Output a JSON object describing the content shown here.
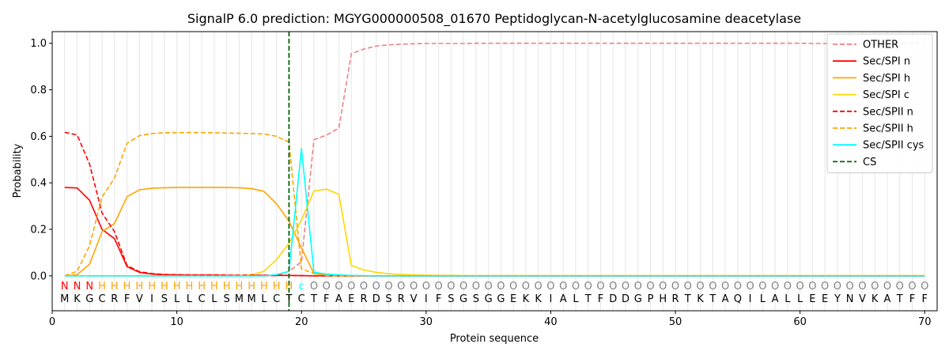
{
  "chart_data": {
    "type": "line",
    "title": "SignalP 6.0 prediction: MGYG000000508_01670 Peptidoglycan-N-acetylglucosamine deacetylase",
    "xlabel": "Protein sequence",
    "ylabel": "Probability",
    "xlim": [
      0,
      71
    ],
    "ylim": [
      -0.15,
      1.05
    ],
    "xticks": [
      0,
      10,
      20,
      30,
      40,
      50,
      60,
      70
    ],
    "yticks": [
      0.0,
      0.2,
      0.4,
      0.6,
      0.8,
      1.0
    ],
    "grid": "vertical lines at every residue position",
    "legend_position": "top-right",
    "sequence": [
      "M",
      "K",
      "G",
      "C",
      "R",
      "F",
      "V",
      "I",
      "S",
      "L",
      "L",
      "C",
      "L",
      "S",
      "M",
      "M",
      "L",
      "C",
      "T",
      "C",
      "T",
      "F",
      "A",
      "E",
      "R",
      "D",
      "S",
      "R",
      "V",
      "I",
      "F",
      "S",
      "G",
      "S",
      "G",
      "G",
      "E",
      "K",
      "K",
      "I",
      "A",
      "L",
      "T",
      "F",
      "D",
      "D",
      "G",
      "P",
      "H",
      "R",
      "T",
      "K",
      "T",
      "A",
      "Q",
      "I",
      "L",
      "A",
      "L",
      "L",
      "E",
      "E",
      "Y",
      "N",
      "V",
      "K",
      "A",
      "T",
      "F",
      "F"
    ],
    "region_labels": [
      "N",
      "N",
      "N",
      "H",
      "H",
      "H",
      "H",
      "H",
      "H",
      "H",
      "H",
      "H",
      "H",
      "H",
      "H",
      "H",
      "H",
      "H",
      "H",
      "c",
      "O",
      "O",
      "O",
      "O",
      "O",
      "O",
      "O",
      "O",
      "O",
      "O",
      "O",
      "O",
      "O",
      "O",
      "O",
      "O",
      "O",
      "O",
      "O",
      "O",
      "O",
      "O",
      "O",
      "O",
      "O",
      "O",
      "O",
      "O",
      "O",
      "O",
      "O",
      "O",
      "O",
      "O",
      "O",
      "O",
      "O",
      "O",
      "O",
      "O",
      "O",
      "O",
      "O",
      "O",
      "O",
      "O",
      "O",
      "O",
      "O",
      "O"
    ],
    "region_colors": {
      "N": "#ff0000",
      "H": "#ffa500",
      "c": "#00ffff",
      "O": "#808080"
    },
    "cleavage_site": 19,
    "series": [
      {
        "name": "OTHER",
        "color": "#f08080",
        "dash": true,
        "values": [
          0.0,
          0.0,
          0.0,
          0.0,
          0.0,
          0.0,
          0.0,
          0.0,
          0.0,
          0.0,
          0.0,
          0.0,
          0.0,
          0.0,
          0.0,
          0.0,
          0.0,
          0.0,
          0.02,
          0.06,
          0.585,
          0.605,
          0.635,
          0.955,
          0.975,
          0.988,
          0.993,
          0.996,
          0.998,
          0.999,
          0.999,
          0.999,
          0.999,
          1.0,
          1.0,
          1.0,
          1.0,
          1.0,
          1.0,
          1.0,
          1.0,
          1.0,
          1.0,
          1.0,
          1.0,
          1.0,
          1.0,
          1.0,
          1.0,
          1.0,
          1.0,
          1.0,
          1.0,
          1.0,
          1.0,
          1.0,
          1.0,
          1.0,
          1.0,
          1.0,
          0.999,
          0.999,
          0.999,
          0.999,
          0.999,
          0.999,
          0.999,
          0.999,
          0.999,
          0.999
        ]
      },
      {
        "name": "Sec/SPI n",
        "color": "#ff0000",
        "dash": false,
        "values": [
          0.38,
          0.378,
          0.325,
          0.2,
          0.16,
          0.04,
          0.015,
          0.008,
          0.005,
          0.004,
          0.003,
          0.003,
          0.003,
          0.002,
          0.002,
          0.002,
          0.002,
          0.002,
          0.002,
          0.001,
          0.0,
          0.0,
          0.0,
          0.0,
          0.0,
          0.0,
          0.0,
          0.0,
          0.0,
          0.0,
          0.0,
          0.0,
          0.0,
          0.0,
          0.0,
          0.0,
          0.0,
          0.0,
          0.0,
          0.0,
          0.0,
          0.0,
          0.0,
          0.0,
          0.0,
          0.0,
          0.0,
          0.0,
          0.0,
          0.0,
          0.0,
          0.0,
          0.0,
          0.0,
          0.0,
          0.0,
          0.0,
          0.0,
          0.0,
          0.0,
          0.0,
          0.0,
          0.0,
          0.0,
          0.0,
          0.0,
          0.0,
          0.0,
          0.0,
          0.0
        ]
      },
      {
        "name": "Sec/SPI h",
        "color": "#ffa500",
        "dash": false,
        "values": [
          0.0,
          0.005,
          0.05,
          0.19,
          0.225,
          0.34,
          0.37,
          0.377,
          0.379,
          0.38,
          0.38,
          0.38,
          0.38,
          0.38,
          0.379,
          0.375,
          0.363,
          0.31,
          0.235,
          0.12,
          0.01,
          0.002,
          0.0,
          0.0,
          0.0,
          0.0,
          0.0,
          0.0,
          0.0,
          0.0,
          0.0,
          0.0,
          0.0,
          0.0,
          0.0,
          0.0,
          0.0,
          0.0,
          0.0,
          0.0,
          0.0,
          0.0,
          0.0,
          0.0,
          0.0,
          0.0,
          0.0,
          0.0,
          0.0,
          0.0,
          0.0,
          0.0,
          0.0,
          0.0,
          0.0,
          0.0,
          0.0,
          0.0,
          0.0,
          0.0,
          0.0,
          0.0,
          0.0,
          0.0,
          0.0,
          0.0,
          0.0,
          0.0,
          0.0,
          0.0
        ]
      },
      {
        "name": "Sec/SPI c",
        "color": "#ffd700",
        "dash": false,
        "values": [
          0.0,
          0.0,
          0.0,
          0.0,
          0.0,
          0.0,
          0.0,
          0.0,
          0.0,
          0.0,
          0.0,
          0.0,
          0.0,
          0.0,
          0.001,
          0.005,
          0.02,
          0.07,
          0.14,
          0.24,
          0.365,
          0.373,
          0.35,
          0.045,
          0.025,
          0.015,
          0.009,
          0.006,
          0.004,
          0.003,
          0.002,
          0.002,
          0.001,
          0.001,
          0.001,
          0.001,
          0.001,
          0.001,
          0.001,
          0.001,
          0.001,
          0.001,
          0.001,
          0.001,
          0.001,
          0.001,
          0.001,
          0.001,
          0.001,
          0.001,
          0.001,
          0.001,
          0.001,
          0.001,
          0.001,
          0.001,
          0.001,
          0.001,
          0.001,
          0.001,
          0.001,
          0.001,
          0.001,
          0.001,
          0.001,
          0.001,
          0.001,
          0.001,
          0.001,
          0.001
        ]
      },
      {
        "name": "Sec/SPII n",
        "color": "#ff0000",
        "dash": true,
        "values": [
          0.617,
          0.606,
          0.48,
          0.27,
          0.19,
          0.045,
          0.018,
          0.01,
          0.006,
          0.005,
          0.004,
          0.004,
          0.004,
          0.003,
          0.003,
          0.003,
          0.003,
          0.003,
          0.002,
          0.001,
          0.0,
          0.0,
          0.0,
          0.0,
          0.0,
          0.0,
          0.0,
          0.0,
          0.0,
          0.0,
          0.0,
          0.0,
          0.0,
          0.0,
          0.0,
          0.0,
          0.0,
          0.0,
          0.0,
          0.0,
          0.0,
          0.0,
          0.0,
          0.0,
          0.0,
          0.0,
          0.0,
          0.0,
          0.0,
          0.0,
          0.0,
          0.0,
          0.0,
          0.0,
          0.0,
          0.0,
          0.0,
          0.0,
          0.0,
          0.0,
          0.0,
          0.0,
          0.0,
          0.0,
          0.0,
          0.0,
          0.0,
          0.0,
          0.0,
          0.0
        ]
      },
      {
        "name": "Sec/SPII h",
        "color": "#ffa500",
        "dash": true,
        "values": [
          0.0,
          0.02,
          0.13,
          0.34,
          0.42,
          0.57,
          0.603,
          0.612,
          0.615,
          0.616,
          0.616,
          0.616,
          0.615,
          0.614,
          0.613,
          0.612,
          0.61,
          0.6,
          0.575,
          0.03,
          0.01,
          0.002,
          0.0,
          0.0,
          0.0,
          0.0,
          0.0,
          0.0,
          0.0,
          0.0,
          0.0,
          0.0,
          0.0,
          0.0,
          0.0,
          0.0,
          0.0,
          0.0,
          0.0,
          0.0,
          0.0,
          0.0,
          0.0,
          0.0,
          0.0,
          0.0,
          0.0,
          0.0,
          0.0,
          0.0,
          0.0,
          0.0,
          0.0,
          0.0,
          0.0,
          0.0,
          0.0,
          0.0,
          0.0,
          0.0,
          0.0,
          0.0,
          0.0,
          0.0,
          0.0,
          0.0,
          0.0,
          0.0,
          0.0,
          0.0
        ]
      },
      {
        "name": "Sec/SPII cys",
        "color": "#00ffff",
        "dash": false,
        "values": [
          0.0,
          0.0,
          0.0,
          0.0,
          0.0,
          0.0,
          0.0,
          0.0,
          0.0,
          0.0,
          0.0,
          0.0,
          0.0,
          0.0,
          0.0,
          0.0,
          0.0,
          0.005,
          0.02,
          0.548,
          0.015,
          0.008,
          0.004,
          0.002,
          0.001,
          0.0,
          0.0,
          0.0,
          0.0,
          0.0,
          0.0,
          0.0,
          0.0,
          0.0,
          0.0,
          0.0,
          0.0,
          0.0,
          0.0,
          0.0,
          0.0,
          0.0,
          0.0,
          0.0,
          0.0,
          0.0,
          0.0,
          0.0,
          0.0,
          0.0,
          0.0,
          0.0,
          0.0,
          0.0,
          0.0,
          0.0,
          0.0,
          0.0,
          0.0,
          0.0,
          0.0,
          0.0,
          0.0,
          0.0,
          0.0,
          0.0,
          0.0,
          0.0,
          0.0,
          0.0
        ]
      }
    ],
    "legend": [
      {
        "name": "OTHER",
        "color": "#f08080",
        "dash": true
      },
      {
        "name": "Sec/SPI n",
        "color": "#ff0000",
        "dash": false
      },
      {
        "name": "Sec/SPI h",
        "color": "#ffa500",
        "dash": false
      },
      {
        "name": "Sec/SPI c",
        "color": "#ffd700",
        "dash": false
      },
      {
        "name": "Sec/SPII n",
        "color": "#ff0000",
        "dash": true
      },
      {
        "name": "Sec/SPII h",
        "color": "#ffa500",
        "dash": true
      },
      {
        "name": "Sec/SPII cys",
        "color": "#00ffff",
        "dash": false
      },
      {
        "name": "CS",
        "color": "#006400",
        "dash": true
      }
    ]
  }
}
